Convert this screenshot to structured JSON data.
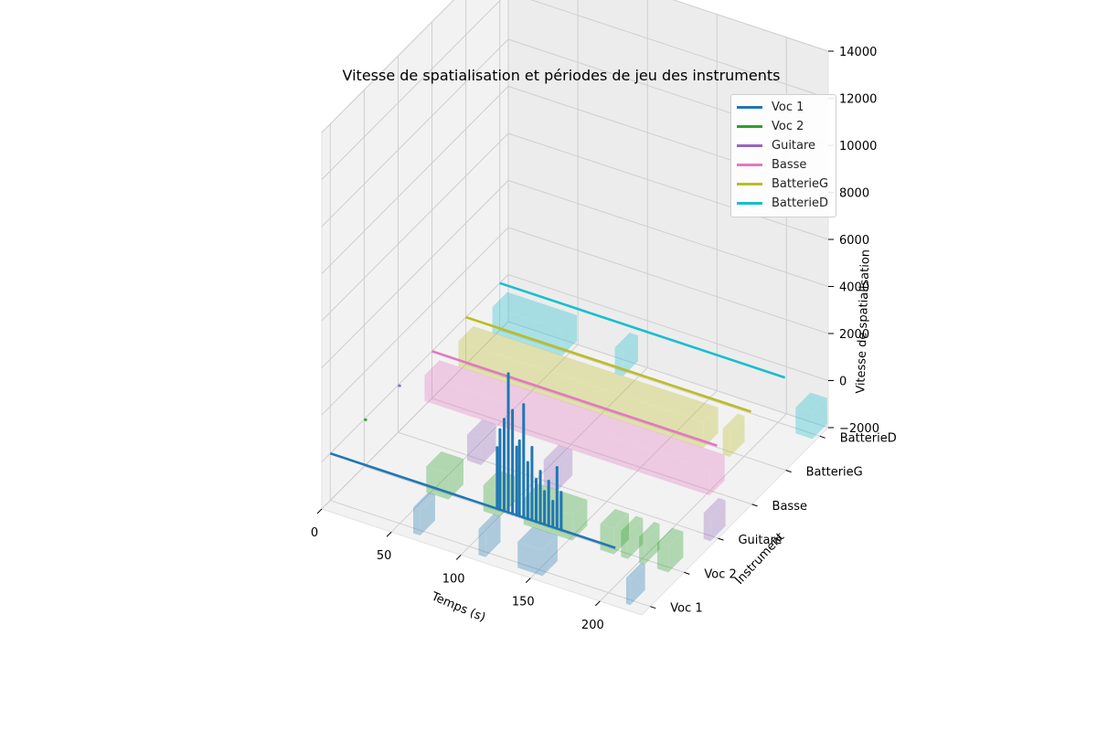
{
  "chart_data": {
    "type": "line",
    "title": "Vitesse de spatialisation et périodes de jeu des instruments",
    "xlabel": "Temps (s)",
    "ylabel": "Instrument",
    "zlabel": "Vitesse de spatialisation",
    "xlim": [
      0,
      230
    ],
    "x_ticks": [
      "0",
      "50",
      "100",
      "150",
      "200"
    ],
    "x_tick_values": [
      0,
      50,
      100,
      150,
      200
    ],
    "z_ticks": [
      "−2000",
      "0",
      "2000",
      "4000",
      "6000",
      "8000",
      "10000",
      "12000",
      "14000"
    ],
    "z_tick_values": [
      -2000,
      0,
      2000,
      4000,
      6000,
      8000,
      10000,
      12000,
      14000
    ],
    "zlim": [
      -2000,
      14000
    ],
    "categories": [
      "Voc 1",
      "Voc 2",
      "Guitare",
      "Basse",
      "BatterieG",
      "BatterieD"
    ],
    "grid": true,
    "legend_position": "top-right",
    "series": [
      {
        "name": "Voc 1",
        "color": "#1f77b4",
        "line_x": [
          0,
          205
        ],
        "spikes": [
          {
            "x": 120,
            "z": 2600
          },
          {
            "x": 122,
            "z": 3400
          },
          {
            "x": 125,
            "z": 3900
          },
          {
            "x": 128,
            "z": 5900
          },
          {
            "x": 131,
            "z": 4400
          },
          {
            "x": 134,
            "z": 2900
          },
          {
            "x": 136,
            "z": 3200
          },
          {
            "x": 139,
            "z": 4800
          },
          {
            "x": 142,
            "z": 2400
          },
          {
            "x": 145,
            "z": 3100
          },
          {
            "x": 148,
            "z": 1800
          },
          {
            "x": 151,
            "z": 2200
          },
          {
            "x": 154,
            "z": 1400
          },
          {
            "x": 157,
            "z": 1900
          },
          {
            "x": 160,
            "z": 1100
          },
          {
            "x": 163,
            "z": 2600
          },
          {
            "x": 166,
            "z": 1600
          }
        ],
        "periods": [
          [
            65,
            70
          ],
          [
            112,
            117
          ],
          [
            140,
            158
          ],
          [
            218,
            221
          ]
        ]
      },
      {
        "name": "Voc 2",
        "color": "#2ca02c",
        "line_x": [
          0,
          2
        ],
        "periods": [
          [
            50,
            66
          ],
          [
            91,
            103
          ],
          [
            120,
            155
          ],
          [
            175,
            185
          ],
          [
            190,
            195
          ],
          [
            203,
            207
          ],
          [
            216,
            224
          ]
        ]
      },
      {
        "name": "Guitare",
        "color": "#9467bd",
        "line_x": [
          0,
          2
        ],
        "periods": [
          [
            55,
            65
          ],
          [
            110,
            120
          ],
          [
            225,
            230
          ]
        ]
      },
      {
        "name": "Basse",
        "color": "#e377c2",
        "line_x": [
          0,
          205
        ],
        "periods": [
          [
            0,
            205
          ]
        ]
      },
      {
        "name": "BatterieG",
        "color": "#bcbd22",
        "line_x": [
          0,
          205
        ],
        "periods": [
          [
            0,
            176
          ],
          [
            190,
            195
          ]
        ]
      },
      {
        "name": "BatterieD",
        "color": "#17becf",
        "line_x": [
          0,
          205
        ],
        "periods": [
          [
            0,
            50
          ],
          [
            88,
            94
          ],
          [
            218,
            230
          ]
        ]
      }
    ]
  }
}
